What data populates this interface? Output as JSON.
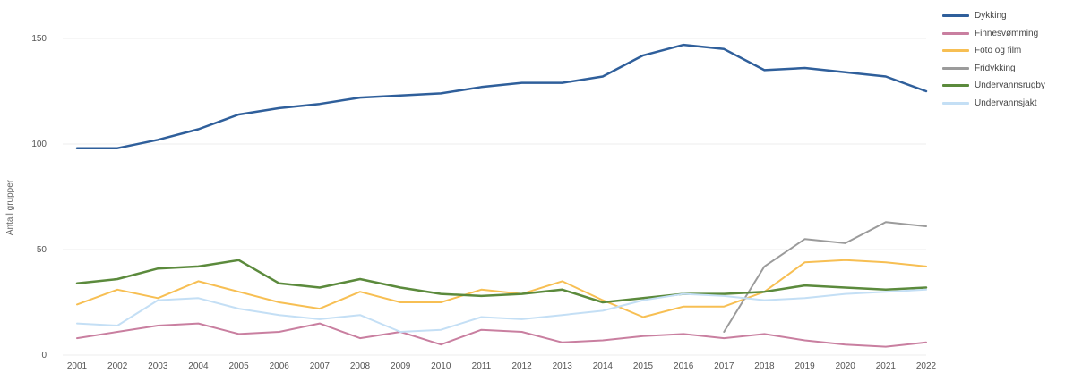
{
  "chart_data": {
    "type": "line",
    "title": "",
    "xlabel": "",
    "ylabel": "Antall grupper",
    "ylim": [
      0,
      160
    ],
    "yticks": [
      0,
      50,
      100,
      150
    ],
    "x": [
      "2001",
      "2002",
      "2003",
      "2004",
      "2005",
      "2006",
      "2007",
      "2008",
      "2009",
      "2010",
      "2011",
      "2012",
      "2013",
      "2014",
      "2015",
      "2016",
      "2017",
      "2018",
      "2019",
      "2020",
      "2021",
      "2022"
    ],
    "grid": true,
    "legend": "right",
    "series": [
      {
        "name": "Dykking",
        "color": "#2f5f9b",
        "width": 2.5,
        "values": [
          98,
          98,
          102,
          107,
          114,
          117,
          119,
          122,
          123,
          124,
          127,
          129,
          129,
          132,
          142,
          147,
          145,
          135,
          136,
          134,
          132,
          125
        ]
      },
      {
        "name": "Finnesvømming",
        "color": "#c97fa0",
        "width": 2,
        "values": [
          8,
          11,
          14,
          15,
          10,
          11,
          15,
          8,
          11,
          5,
          12,
          11,
          6,
          7,
          9,
          10,
          8,
          10,
          7,
          5,
          4,
          6
        ]
      },
      {
        "name": "Foto og film",
        "color": "#f7bf53",
        "width": 2,
        "values": [
          24,
          31,
          27,
          35,
          30,
          25,
          22,
          30,
          25,
          25,
          31,
          29,
          35,
          26,
          18,
          23,
          23,
          30,
          44,
          45,
          44,
          42
        ]
      },
      {
        "name": "Fridykking",
        "color": "#9b9b9b",
        "width": 2,
        "values": [
          null,
          null,
          null,
          null,
          null,
          null,
          null,
          null,
          null,
          null,
          null,
          null,
          null,
          null,
          null,
          null,
          11,
          42,
          55,
          53,
          63,
          61
        ]
      },
      {
        "name": "Undervannsrugby",
        "color": "#5b8a3c",
        "width": 2.5,
        "values": [
          34,
          36,
          41,
          42,
          45,
          34,
          32,
          36,
          32,
          29,
          28,
          29,
          31,
          25,
          27,
          29,
          29,
          30,
          33,
          32,
          31,
          32
        ]
      },
      {
        "name": "Undervannsjakt",
        "color": "#c4dff5",
        "width": 2,
        "values": [
          15,
          14,
          26,
          27,
          22,
          19,
          17,
          19,
          11,
          12,
          18,
          17,
          19,
          21,
          26,
          29,
          28,
          26,
          27,
          29,
          30,
          31
        ]
      }
    ]
  }
}
